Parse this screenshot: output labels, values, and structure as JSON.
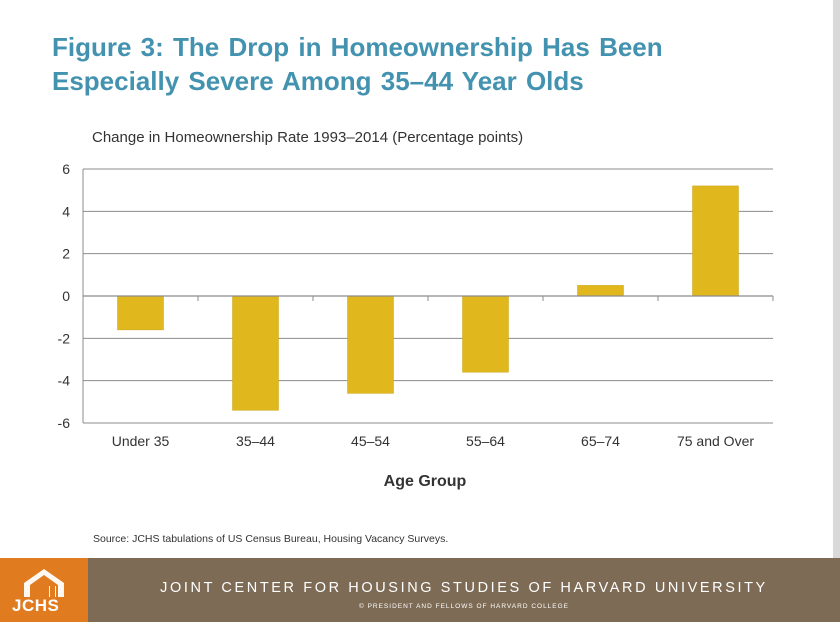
{
  "header": {
    "title": "Figure 3: The Drop in Homeownership Has Been Especially Severe Among 35–44 Year Olds"
  },
  "chart_data": {
    "type": "bar",
    "title": "",
    "subtitle": "Change in Homeownership Rate 1993–2014 (Percentage points)",
    "xlabel": "Age Group",
    "ylabel": "",
    "categories": [
      "Under 35",
      "35–44",
      "45–54",
      "55–64",
      "65–74",
      "75 and Over"
    ],
    "values": [
      -1.6,
      -5.4,
      -4.6,
      -3.6,
      0.5,
      5.2
    ],
    "ylim": [
      -6,
      6
    ],
    "yticks": [
      6,
      4,
      2,
      0,
      -2,
      -4,
      -6
    ],
    "grid": true,
    "bar_color": "#e0b81e",
    "grid_color": "#8c8c8c"
  },
  "source": "Source: JCHS tabulations of US Census Bureau, Housing Vacancy Surveys.",
  "footer": {
    "logo_text": "JCHS",
    "organization": "JOINT CENTER FOR HOUSING STUDIES OF HARVARD UNIVERSITY",
    "copyright": "© PRESIDENT AND FELLOWS OF HARVARD COLLEGE",
    "background_color": "#7d6b55",
    "logo_color": "#e07b1f"
  }
}
